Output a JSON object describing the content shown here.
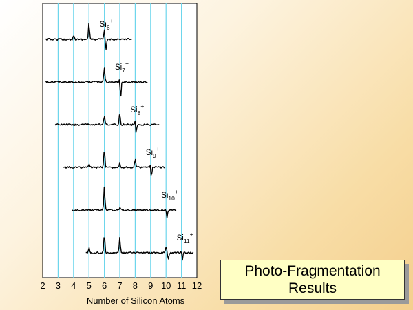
{
  "slide": {
    "title_line1": "Photo-Fragmentation",
    "title_line2": "Results",
    "title_box_color": "#ffffc4",
    "background": "warm beige gradient"
  },
  "chart_data": {
    "type": "line",
    "title": "",
    "xlabel": "Number of Silicon Atoms",
    "ylabel": "",
    "xlim": [
      2,
      12
    ],
    "x_ticks": [
      2,
      3,
      4,
      5,
      6,
      7,
      8,
      9,
      10,
      11,
      12
    ],
    "grid_color": "#6dd6ec",
    "grid": "vertical lines at each integer",
    "traces": [
      {
        "ion": "Si6+",
        "base": "Si",
        "sub": "6",
        "sup": "+",
        "parent": 6,
        "x_start": 2.2,
        "x_end": 7.8,
        "peaks": [
          {
            "x": 4,
            "h": 0.25
          },
          {
            "x": 5,
            "h": 0.8
          },
          {
            "x": 6,
            "h": 0.45
          },
          {
            "x": 6.1,
            "h": -0.55
          }
        ]
      },
      {
        "ion": "Si7+",
        "base": "Si",
        "sub": "7",
        "sup": "+",
        "parent": 7,
        "x_start": 2.2,
        "x_end": 8.8,
        "peaks": [
          {
            "x": 6,
            "h": 0.75
          },
          {
            "x": 7,
            "h": 0.3
          },
          {
            "x": 7.05,
            "h": -0.9
          }
        ]
      },
      {
        "ion": "Si8+",
        "base": "Si",
        "sub": "8",
        "sup": "+",
        "parent": 8,
        "x_start": 2.8,
        "x_end": 9.6,
        "peaks": [
          {
            "x": 6,
            "h": 0.45
          },
          {
            "x": 7,
            "h": 0.55
          },
          {
            "x": 8,
            "h": 0.3
          },
          {
            "x": 8.05,
            "h": -0.5
          }
        ]
      },
      {
        "ion": "Si9+",
        "base": "Si",
        "sub": "9",
        "sup": "+",
        "parent": 9,
        "x_start": 3.3,
        "x_end": 9.9,
        "peaks": [
          {
            "x": 5,
            "h": 0.15
          },
          {
            "x": 6,
            "h": 0.9
          },
          {
            "x": 7,
            "h": 0.25
          },
          {
            "x": 8,
            "h": 0.4
          },
          {
            "x": 9,
            "h": 0.2
          },
          {
            "x": 9.05,
            "h": -0.55
          }
        ]
      },
      {
        "ion": "Si10+",
        "base": "Si",
        "sub": "10",
        "sup": "+",
        "parent": 10,
        "x_start": 3.9,
        "x_end": 10.7,
        "peaks": [
          {
            "x": 6,
            "h": 1.2
          },
          {
            "x": 7,
            "h": 0.15
          },
          {
            "x": 10,
            "h": 0.15
          },
          {
            "x": 10.05,
            "h": -0.4
          }
        ]
      },
      {
        "ion": "Si11+",
        "base": "Si",
        "sub": "11",
        "sup": "+",
        "parent": 11,
        "x_start": 4.8,
        "x_end": 11.8,
        "peaks": [
          {
            "x": 5,
            "h": 0.25
          },
          {
            "x": 6,
            "h": 0.9
          },
          {
            "x": 7,
            "h": 0.75
          },
          {
            "x": 10,
            "h": 0.3
          },
          {
            "x": 10.15,
            "h": -0.3
          },
          {
            "x": 11,
            "h": 0.2
          },
          {
            "x": 11.05,
            "h": -0.4
          }
        ]
      }
    ]
  }
}
